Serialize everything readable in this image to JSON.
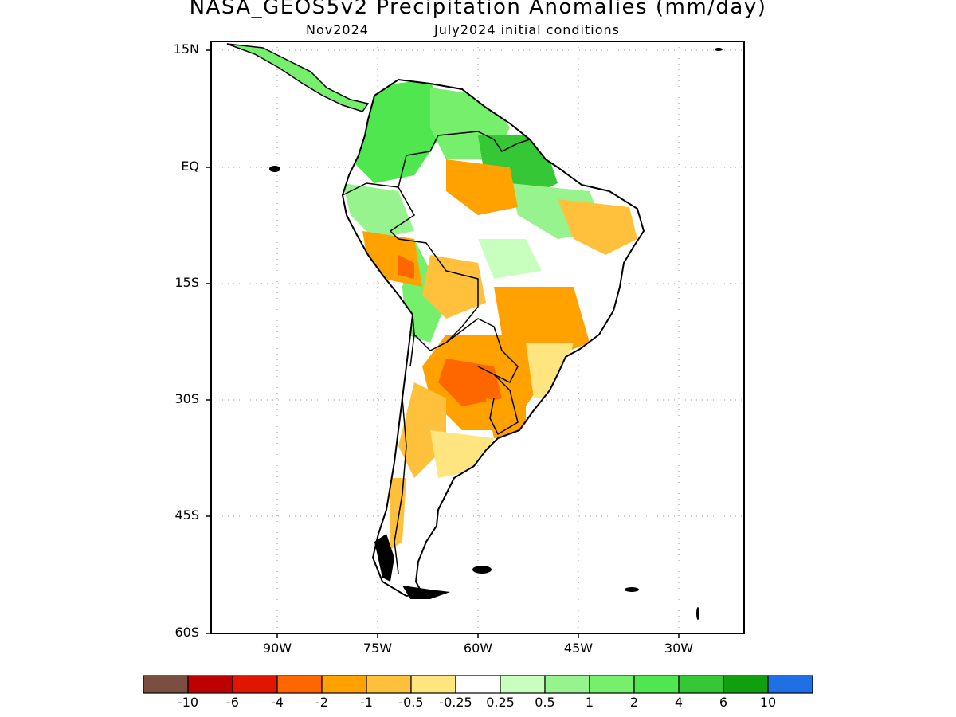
{
  "title": "NASA_GEOS5v2 Precipitation Anomalies (mm/day)",
  "subtitle_left": "Nov2024",
  "subtitle_right": "July2024 initial conditions",
  "lat_labels": [
    "15N",
    "EQ",
    "15S",
    "30S",
    "45S",
    "60S"
  ],
  "lon_labels": [
    "90W",
    "75W",
    "60W",
    "45W",
    "30W"
  ],
  "colorbar": {
    "colors": [
      "#7a4f40",
      "#bd0000",
      "#e01600",
      "#fe6700",
      "#ffa200",
      "#ffc13b",
      "#ffe57f",
      "#ffffff",
      "#c8ffbe",
      "#97f38e",
      "#76ef6c",
      "#50e650",
      "#35c735",
      "#0f9f0f",
      "#1f6fe5"
    ],
    "labels": [
      "-10",
      "-6",
      "-4",
      "-2",
      "-1",
      "-0.5",
      "-0.25",
      "0.25",
      "0.5",
      "1",
      "2",
      "4",
      "6",
      "10"
    ]
  }
}
